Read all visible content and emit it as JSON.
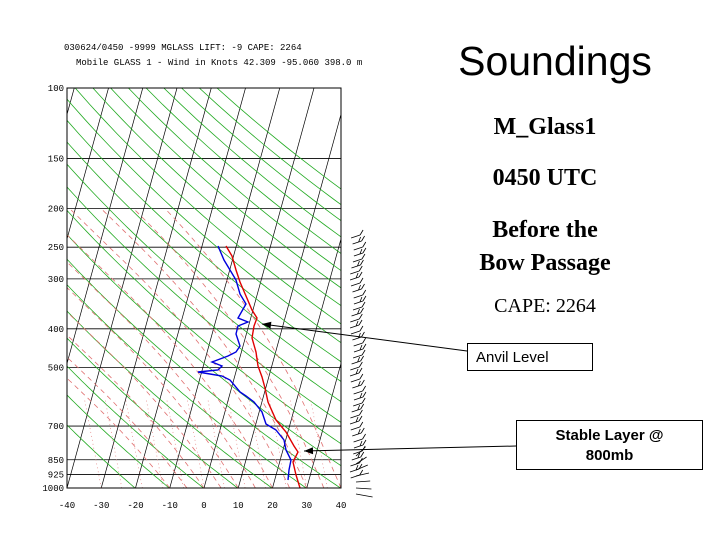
{
  "header": {
    "line1": "030624/0450 -9999  MGLASS  LIFT:    -9 CAPE:   2264",
    "line2": "Mobile GLASS 1 - Wind in Knots  42.309  -95.060   398.0 m"
  },
  "title": "Soundings",
  "info": {
    "station": "M_Glass1",
    "time": "0450 UTC",
    "event_line1": "Before the",
    "event_line2": "Bow Passage",
    "cape": "CAPE: 2264"
  },
  "callouts": {
    "anvil": "Anvil Level",
    "stable_line1": "Stable Layer @",
    "stable_line2": "800mb"
  },
  "chart_data": {
    "type": "skew-t",
    "pressure_ticks": [
      100,
      150,
      200,
      250,
      300,
      400,
      500,
      700,
      850,
      925,
      1000
    ],
    "temperature_ticks": [
      -40,
      -30,
      -20,
      -10,
      0,
      10,
      20,
      30,
      40
    ],
    "xlim": [
      -40,
      40
    ],
    "ylim": [
      1000,
      100
    ],
    "colors": {
      "temperature": "#e00000",
      "dewpoint": "#0000dd",
      "isotherm": "#000000",
      "dry_adiabat": "#22aa22",
      "moist_adiabat": "#e07070"
    }
  }
}
